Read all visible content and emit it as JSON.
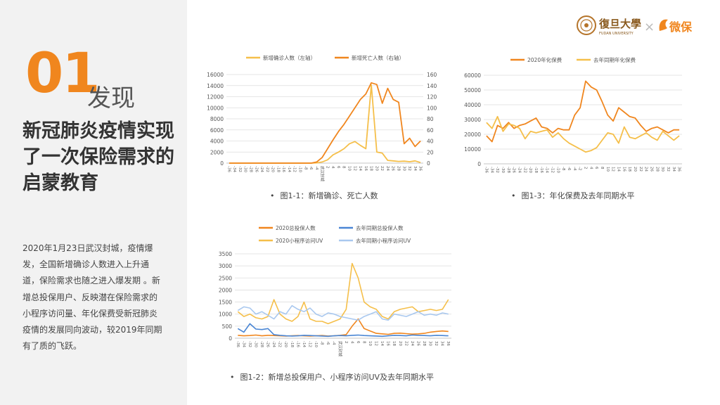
{
  "sidebar": {
    "number": "01",
    "subtitle": "发现",
    "headline": "新冠肺炎疫情实现了一次保险需求的启蒙教育",
    "paragraph": "2020年1月23日武汉封城，疫情爆发，全国新增确诊人数进入上升通道，保险需求也随之进入爆发期 。新增总投保用户、反映潜在保险需求的小程序访问量、年化保费受新冠肺炎疫情的发展同向波动，较2019年同期有了质的飞跃。"
  },
  "logos": {
    "fudan_name": "復旦大學",
    "fudan_en": "FUDAN UNIVERSITY",
    "separator": "×",
    "weibao": "微保"
  },
  "colors": {
    "orange_dark": "#f0861e",
    "orange_light": "#f5bf4a",
    "blue_dark": "#4a86d4",
    "blue_light": "#a9c8ef",
    "accent": "#f0861e"
  },
  "chart_data": [
    {
      "id": "chart1",
      "type": "line",
      "caption": "图1-1：新增确诊、死亡人数",
      "x": [
        "-36",
        "-34",
        "-32",
        "-30",
        "-28",
        "-26",
        "-24",
        "-22",
        "-20",
        "-18",
        "-16",
        "-14",
        "-12",
        "-10",
        "-8",
        "-6",
        "-4",
        "武汉封城",
        "2",
        "4",
        "6",
        "8",
        "10",
        "12",
        "14",
        "16",
        "18",
        "20",
        "22",
        "24",
        "26",
        "28",
        "30",
        "32",
        "34",
        "36"
      ],
      "yleft": {
        "ticks": [
          "0",
          "2000",
          "4000",
          "6000",
          "8000",
          "10000",
          "12000",
          "14000",
          "16000"
        ],
        "ylim": [
          0,
          16000
        ]
      },
      "yright": {
        "ticks": [
          "0",
          "20",
          "40",
          "60",
          "80",
          "100",
          "120",
          "140",
          "160"
        ],
        "ylim": [
          0,
          160
        ]
      },
      "series": [
        {
          "name": "新增确诊人数（左轴）",
          "axis": "left",
          "values": [
            0,
            0,
            0,
            0,
            0,
            0,
            0,
            0,
            0,
            0,
            0,
            0,
            0,
            0,
            0,
            0,
            50,
            200,
            600,
            1500,
            2000,
            2600,
            3500,
            3900,
            3200,
            2600,
            14100,
            2000,
            1800,
            500,
            400,
            300,
            350,
            250,
            400,
            100
          ]
        },
        {
          "name": "新增死亡人数（右轴）",
          "axis": "right",
          "values": [
            0,
            0,
            0,
            0,
            0,
            0,
            0,
            0,
            0,
            0,
            0,
            0,
            0,
            0,
            0,
            0,
            2,
            10,
            26,
            42,
            57,
            70,
            85,
            100,
            115,
            125,
            145,
            142,
            108,
            135,
            115,
            110,
            35,
            45,
            30,
            40
          ]
        }
      ]
    },
    {
      "id": "chart3",
      "type": "line",
      "caption": "图1-3：年化保费及去年同期水平",
      "x": [
        "-36",
        "-34",
        "-32",
        "-30",
        "-28",
        "-26",
        "-24",
        "-22",
        "-20",
        "-18",
        "-16",
        "-14",
        "-12",
        "-10",
        "-8",
        "-6",
        "-4",
        "-2",
        "2",
        "4",
        "6",
        "8",
        "10",
        "12",
        "14",
        "16",
        "18",
        "20",
        "22",
        "24",
        "26",
        "28",
        "30",
        "32",
        "34",
        "36"
      ],
      "yleft": {
        "ticks": [
          "0",
          "10000",
          "20000",
          "30000",
          "40000",
          "50000",
          "60000"
        ],
        "ylim": [
          0,
          60000
        ]
      },
      "series": [
        {
          "name": "2020年化保费",
          "values": [
            19000,
            15000,
            26000,
            24000,
            28000,
            24000,
            26000,
            27000,
            29000,
            31000,
            25000,
            24000,
            21000,
            24000,
            23000,
            23000,
            33000,
            38000,
            56000,
            52000,
            50000,
            42000,
            33000,
            29000,
            38000,
            35000,
            32000,
            31000,
            26000,
            22000,
            24000,
            25000,
            23000,
            21000,
            23000,
            23000
          ]
        },
        {
          "name": "去年同期年化保费",
          "values": [
            28000,
            24000,
            32000,
            22000,
            27000,
            26000,
            24000,
            17000,
            22000,
            21000,
            22000,
            23000,
            18000,
            21000,
            17000,
            14000,
            12000,
            10000,
            8000,
            9000,
            11000,
            16000,
            21000,
            20000,
            14000,
            25000,
            18000,
            17000,
            19000,
            21000,
            18000,
            16000,
            22000,
            19000,
            16000,
            19000
          ]
        }
      ]
    },
    {
      "id": "chart2",
      "type": "line",
      "caption": "图1-2：新增总投保用户、小程序访问UV及去年同期水平",
      "x": [
        "-36",
        "-34",
        "-32",
        "-30",
        "-28",
        "-26",
        "-24",
        "-22",
        "-20",
        "-18",
        "-16",
        "-14",
        "-12",
        "-10",
        "-8",
        "-6",
        "-4",
        "武汉封城",
        "2",
        "4",
        "6",
        "8",
        "10",
        "12",
        "14",
        "16",
        "18",
        "20",
        "22",
        "24",
        "26",
        "28",
        "30",
        "32",
        "34",
        "36"
      ],
      "yleft": {
        "ticks": [
          "0",
          "500",
          "1000",
          "1500",
          "2000",
          "2500",
          "3000",
          "3500"
        ],
        "ylim": [
          0,
          3500
        ]
      },
      "series": [
        {
          "name": "2020总投保人数",
          "values": [
            120,
            100,
            110,
            130,
            100,
            120,
            110,
            100,
            90,
            100,
            110,
            100,
            90,
            100,
            110,
            90,
            100,
            120,
            150,
            500,
            800,
            400,
            300,
            200,
            180,
            160,
            200,
            210,
            190,
            170,
            180,
            200,
            250,
            280,
            300,
            280
          ]
        },
        {
          "name": "去年同期总投保人数",
          "values": [
            400,
            250,
            600,
            380,
            360,
            400,
            150,
            120,
            100,
            90,
            100,
            120,
            110,
            100,
            90,
            80,
            100,
            110,
            100,
            120,
            130,
            110,
            100,
            90,
            80,
            100,
            120,
            110,
            100,
            130,
            120,
            110,
            100,
            120,
            110,
            100
          ]
        },
        {
          "name": "2020小程序访问UV",
          "values": [
            1100,
            900,
            1000,
            850,
            800,
            900,
            1600,
            1000,
            800,
            700,
            900,
            1500,
            800,
            700,
            700,
            600,
            700,
            800,
            1200,
            3100,
            2500,
            1500,
            1300,
            1200,
            900,
            800,
            1100,
            1200,
            1250,
            1300,
            1100,
            1150,
            1200,
            1150,
            1200,
            1600
          ]
        },
        {
          "name": "去年同期小程序访问UV",
          "values": [
            1150,
            1300,
            1250,
            1000,
            1100,
            950,
            800,
            1100,
            1000,
            1350,
            1200,
            1100,
            1250,
            1000,
            900,
            1050,
            1000,
            900,
            850,
            800,
            750,
            900,
            1000,
            1100,
            800,
            750,
            1000,
            950,
            900,
            1000,
            1100,
            950,
            1000,
            950,
            1050,
            1000
          ]
        }
      ]
    }
  ]
}
